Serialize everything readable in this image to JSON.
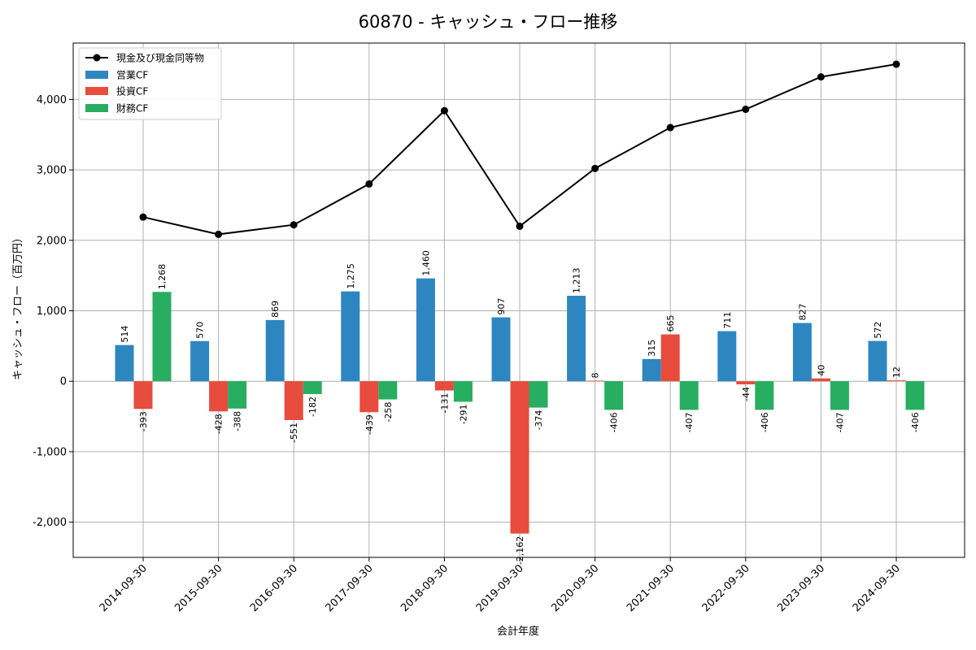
{
  "chart_data": {
    "type": "bar+line",
    "title": "60870 - キャッシュ・フロー推移",
    "xlabel": "会計年度",
    "ylabel": "キャッシュ・フロー（百万円）",
    "ylim": [
      -2500,
      4800
    ],
    "yticks": [
      -2000,
      -1000,
      0,
      1000,
      2000,
      3000,
      4000
    ],
    "ytick_labels": [
      "-2,000",
      "-1,000",
      "0",
      "1,000",
      "2,000",
      "3,000",
      "4,000"
    ],
    "grid": true,
    "legend_position": "top-left",
    "categories": [
      "2014-09-30",
      "2015-09-30",
      "2016-09-30",
      "2017-09-30",
      "2018-09-30",
      "2019-09-30",
      "2020-09-30",
      "2021-09-30",
      "2022-09-30",
      "2023-09-30",
      "2024-09-30"
    ],
    "line_series": {
      "name": "現金及び現金同等物",
      "color": "#000000",
      "values": [
        2330,
        2085,
        2220,
        2800,
        3840,
        2200,
        3020,
        3600,
        3860,
        4320,
        4500
      ]
    },
    "series": [
      {
        "name": "営業CF",
        "color": "#2e86c1",
        "values": [
          514,
          570,
          869,
          1275,
          1460,
          907,
          1213,
          315,
          711,
          827,
          572
        ],
        "labels": [
          "514",
          "570",
          "869",
          "1,275",
          "1,460",
          "907",
          "1,213",
          "315",
          "711",
          "827",
          "572"
        ]
      },
      {
        "name": "投資CF",
        "color": "#e74c3c",
        "values": [
          -393,
          -428,
          -551,
          -439,
          -131,
          -2162,
          8,
          665,
          -44,
          40,
          12
        ],
        "labels": [
          "-393",
          "-428",
          "-551",
          "-439",
          "-131",
          "-2,162",
          "8",
          "665",
          "-44",
          "40",
          "12"
        ]
      },
      {
        "name": "財務CF",
        "color": "#27ae60",
        "values": [
          1268,
          -388,
          -182,
          -258,
          -291,
          -374,
          -406,
          -407,
          -406,
          -407,
          -406
        ],
        "labels": [
          "1,268",
          "-388",
          "-182",
          "-258",
          "-291",
          "-374",
          "-406",
          "-407",
          "-406",
          "-407",
          "-406"
        ]
      }
    ]
  }
}
